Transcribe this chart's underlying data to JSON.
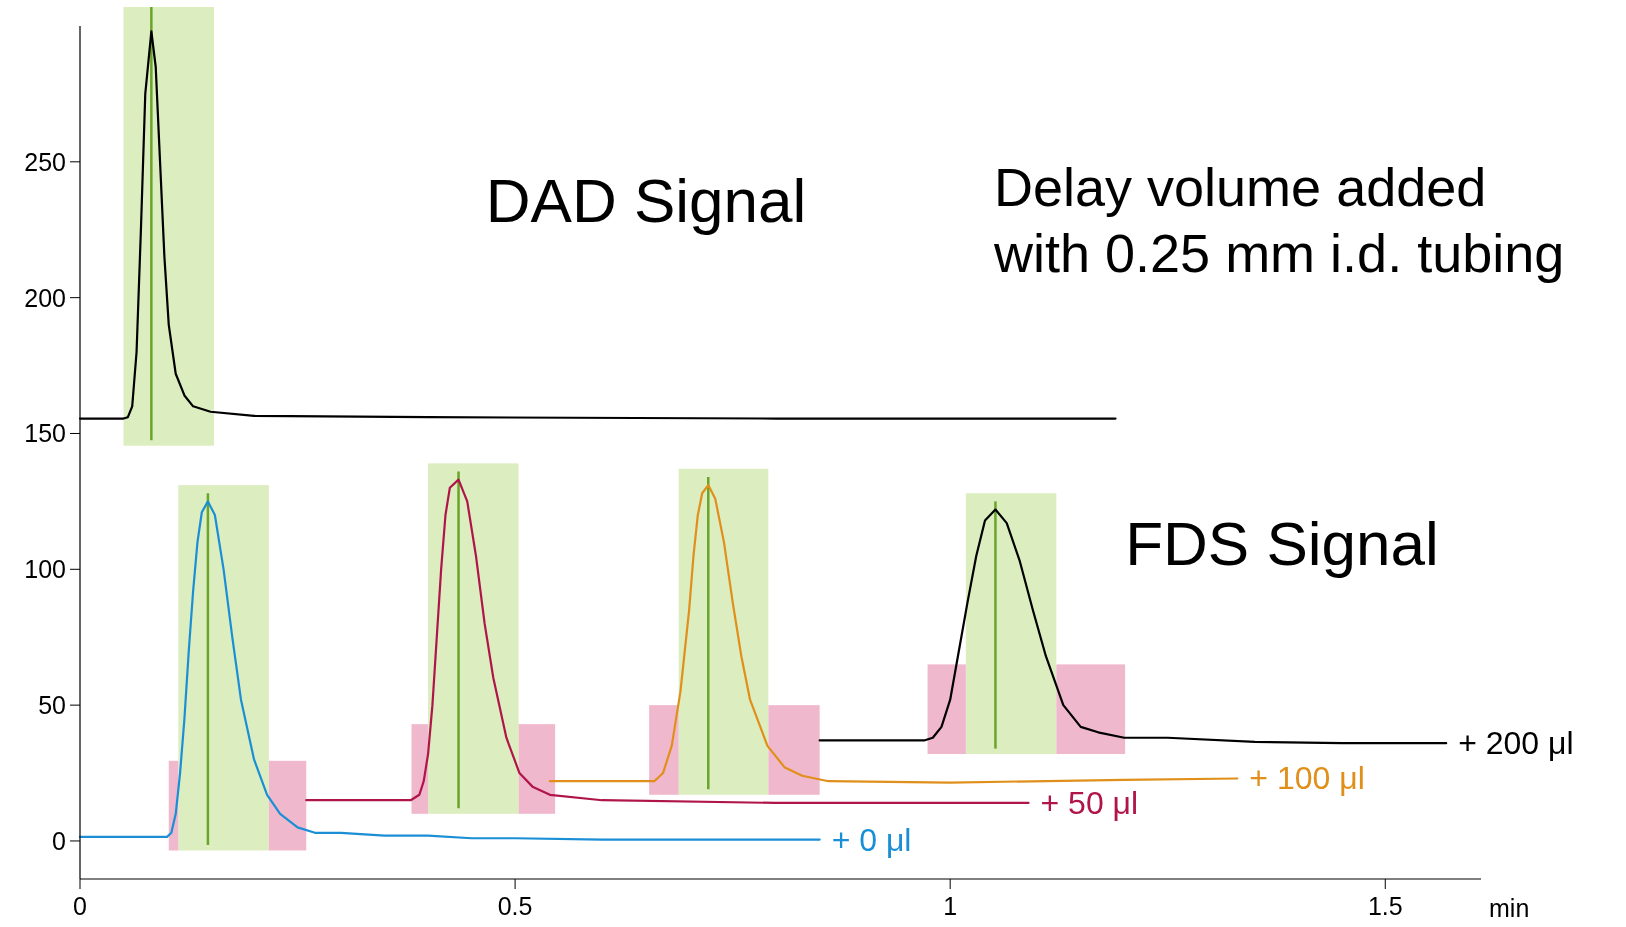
{
  "chart_data": {
    "type": "line",
    "xlabel": "min",
    "xlim": [
      0,
      1.61
    ],
    "ylim": [
      -14,
      300
    ],
    "xticks": [
      0,
      0.5,
      1,
      1.5
    ],
    "yticks": [
      0,
      50,
      100,
      150,
      200,
      250
    ],
    "grid": false,
    "line_style": "solid",
    "annotations": [
      "DAD Signal",
      "FDS Signal",
      "Delay volume added\nwith 0.25 mm i.d. tubing"
    ],
    "series": [
      {
        "color": "#000000",
        "x": [
          0,
          0.05,
          0.055,
          0.06,
          0.065,
          0.07,
          0.075,
          0.082,
          0.087,
          0.092,
          0.097,
          0.102,
          0.11,
          0.12,
          0.13,
          0.15,
          0.2,
          0.4,
          0.8,
          1.19
        ],
        "values": [
          155.5,
          155.5,
          156,
          160,
          180,
          225,
          275,
          298,
          285,
          250,
          215,
          190,
          172,
          164,
          160,
          158,
          156.5,
          156,
          155.5,
          155.5
        ]
      },
      {
        "name": "+ 0 μl",
        "color": "#1a8fd6",
        "x": [
          0,
          0.1,
          0.105,
          0.11,
          0.115,
          0.12,
          0.125,
          0.13,
          0.135,
          0.14,
          0.147,
          0.155,
          0.165,
          0.175,
          0.185,
          0.2,
          0.215,
          0.23,
          0.25,
          0.27,
          0.3,
          0.35,
          0.4,
          0.45,
          0.5,
          0.6,
          0.7,
          0.85
        ],
        "values": [
          1.5,
          1.5,
          3,
          10,
          25,
          45,
          70,
          92,
          110,
          121,
          125,
          120,
          100,
          75,
          52,
          30,
          17,
          10,
          5,
          3,
          3,
          2,
          2,
          1,
          1,
          0.5,
          0.5,
          0.5
        ]
      },
      {
        "name": "+ 50 μl",
        "color": "#b0154a",
        "x": [
          0.26,
          0.38,
          0.39,
          0.395,
          0.4,
          0.405,
          0.41,
          0.415,
          0.42,
          0.425,
          0.435,
          0.445,
          0.455,
          0.465,
          0.475,
          0.49,
          0.505,
          0.52,
          0.54,
          0.6,
          0.8,
          1,
          1.09
        ],
        "values": [
          15,
          15,
          17,
          22,
          32,
          50,
          75,
          100,
          120,
          130,
          133,
          125,
          105,
          80,
          60,
          38,
          25,
          20,
          17,
          15,
          14,
          14,
          14
        ]
      },
      {
        "name": "+ 100 μl",
        "color": "#e0901a",
        "x": [
          0.54,
          0.66,
          0.67,
          0.68,
          0.69,
          0.7,
          0.705,
          0.71,
          0.715,
          0.722,
          0.73,
          0.74,
          0.75,
          0.76,
          0.77,
          0.79,
          0.81,
          0.83,
          0.86,
          1,
          1.2,
          1.33
        ],
        "values": [
          22,
          22,
          25,
          35,
          55,
          85,
          105,
          120,
          128,
          131,
          126,
          110,
          88,
          68,
          52,
          35,
          27,
          24,
          22,
          21.5,
          22.5,
          23
        ]
      },
      {
        "name": "+ 200 μl",
        "color": "#000000",
        "x": [
          0.85,
          0.97,
          0.98,
          0.99,
          1,
          1.01,
          1.02,
          1.03,
          1.04,
          1.052,
          1.065,
          1.08,
          1.095,
          1.11,
          1.13,
          1.15,
          1.17,
          1.2,
          1.25,
          1.35,
          1.45,
          1.57
        ],
        "values": [
          37,
          37,
          38,
          42,
          52,
          70,
          88,
          105,
          118,
          122,
          117,
          103,
          85,
          68,
          50,
          42,
          40,
          38,
          38,
          36.5,
          36,
          36
        ]
      }
    ],
    "bands": [
      {
        "axis": "x",
        "from": 0.05,
        "to": 0.154,
        "color": "#dcedc0"
      },
      {
        "axis": "x",
        "from": 0.113,
        "to": 0.217,
        "color": "#dcedc0"
      },
      {
        "axis": "x",
        "from": 0.102,
        "to": 0.113,
        "color": "#f0b8cc"
      },
      {
        "axis": "x",
        "from": 0.217,
        "to": 0.26,
        "color": "#f0b8cc"
      },
      {
        "axis": "x",
        "from": 0.4,
        "to": 0.504,
        "color": "#dcedc0"
      },
      {
        "axis": "x",
        "from": 0.381,
        "to": 0.4,
        "color": "#f0b8cc"
      },
      {
        "axis": "x",
        "from": 0.504,
        "to": 0.546,
        "color": "#f0b8cc"
      },
      {
        "axis": "x",
        "from": 0.688,
        "to": 0.791,
        "color": "#dcedc0"
      },
      {
        "axis": "x",
        "from": 0.654,
        "to": 0.688,
        "color": "#f0b8cc"
      },
      {
        "axis": "x",
        "from": 0.791,
        "to": 0.85,
        "color": "#f0b8cc"
      },
      {
        "axis": "x",
        "from": 1.018,
        "to": 1.122,
        "color": "#dcedc0"
      },
      {
        "axis": "x",
        "from": 0.974,
        "to": 1.018,
        "color": "#f0b8cc"
      },
      {
        "axis": "x",
        "from": 1.122,
        "to": 1.201,
        "color": "#f0b8cc"
      }
    ],
    "ref_lines": [
      {
        "axis": "x",
        "value": 0.082,
        "color": "#6aa428"
      },
      {
        "axis": "x",
        "value": 0.147,
        "color": "#6aa428"
      },
      {
        "axis": "x",
        "value": 0.435,
        "color": "#6aa428"
      },
      {
        "axis": "x",
        "value": 0.722,
        "color": "#6aa428"
      },
      {
        "axis": "x",
        "value": 1.052,
        "color": "#6aa428"
      }
    ]
  }
}
